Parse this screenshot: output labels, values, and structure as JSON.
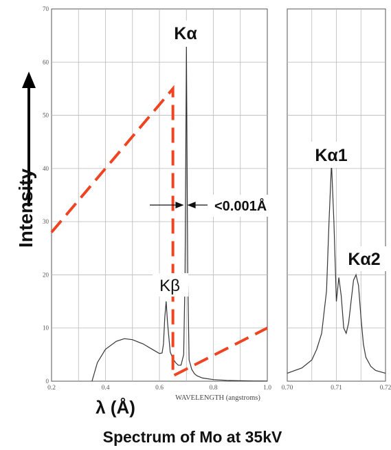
{
  "chart_data": [
    {
      "type": "line",
      "name_ref": "main-panel",
      "xlabel": "WAVELENGTH (angstroms)",
      "ylabel": "",
      "xlim": [
        0.2,
        1.0
      ],
      "ylim": [
        0,
        70
      ],
      "x_ticks": [
        "0.2",
        "0.4",
        "0.6",
        "0.8",
        "1.0"
      ],
      "y_ticks": [
        "0",
        "10",
        "20",
        "30",
        "40",
        "50",
        "60",
        "70"
      ],
      "grid": true,
      "series": [
        {
          "values_x": [
            0.35,
            0.37,
            0.4,
            0.44,
            0.47,
            0.5,
            0.54,
            0.58,
            0.6,
            0.61,
            0.615,
            0.62,
            0.625,
            0.63,
            0.64,
            0.65,
            0.66,
            0.67,
            0.68,
            0.69,
            0.695,
            0.7,
            0.705,
            0.71,
            0.72,
            0.73,
            0.74,
            0.76,
            0.8,
            0.85,
            0.9,
            0.95,
            1.0
          ],
          "values_y": [
            0,
            3.5,
            6,
            7.5,
            8,
            7.8,
            7.0,
            5.8,
            5.2,
            5.3,
            7,
            12,
            15,
            11,
            5.5,
            4.2,
            3.5,
            3.0,
            3.0,
            5,
            20,
            63,
            20,
            4,
            2.2,
            1.4,
            1.0,
            0.6,
            0.3,
            0.15,
            0.08,
            0.04,
            0.02
          ]
        }
      ],
      "annotations": [
        "Kα",
        "Kβ",
        "<0.001Å"
      ],
      "overlay": {
        "color": "#ee4422",
        "points": [
          [
            0.2,
            28
          ],
          [
            0.65,
            55
          ],
          [
            0.65,
            1
          ],
          [
            1.0,
            10
          ]
        ]
      }
    },
    {
      "type": "line",
      "name_ref": "zoom-panel",
      "xlim": [
        0.7,
        0.72
      ],
      "ylim": [
        0,
        70
      ],
      "x_ticks": [
        "0.70",
        "0.71",
        "0.72"
      ],
      "grid": true,
      "series": [
        {
          "values_x": [
            0.7,
            0.703,
            0.705,
            0.706,
            0.707,
            0.708,
            0.7085,
            0.709,
            0.7095,
            0.71,
            0.7105,
            0.711,
            0.7115,
            0.712,
            0.7125,
            0.713,
            0.7135,
            0.714,
            0.7145,
            0.715,
            0.7155,
            0.716,
            0.717,
            0.718,
            0.72
          ],
          "values_y": [
            1.5,
            2.5,
            4,
            6,
            9,
            17,
            30,
            41,
            30,
            15,
            19.5,
            16,
            10,
            9,
            11,
            15,
            19,
            20,
            18,
            12,
            7,
            4.5,
            2.8,
            2,
            1.5
          ]
        }
      ],
      "annotations": [
        "Kα1",
        "Kα2"
      ]
    }
  ],
  "labels": {
    "intensity": "Intensity",
    "lambda": "λ (Å)",
    "title": "Spectrum of Mo at 35kV",
    "k_alpha": "Kα",
    "k_beta": "Kβ",
    "resolution": "<0.001Å",
    "k_alpha1": "Kα1",
    "k_alpha2": "Kα2",
    "wavelength_axis": "WAVELENGTH (angstroms)"
  },
  "colors": {
    "curve": "#333333",
    "grid": "#b8b8b8",
    "dashed": "#ee4422",
    "text": "#111111"
  }
}
